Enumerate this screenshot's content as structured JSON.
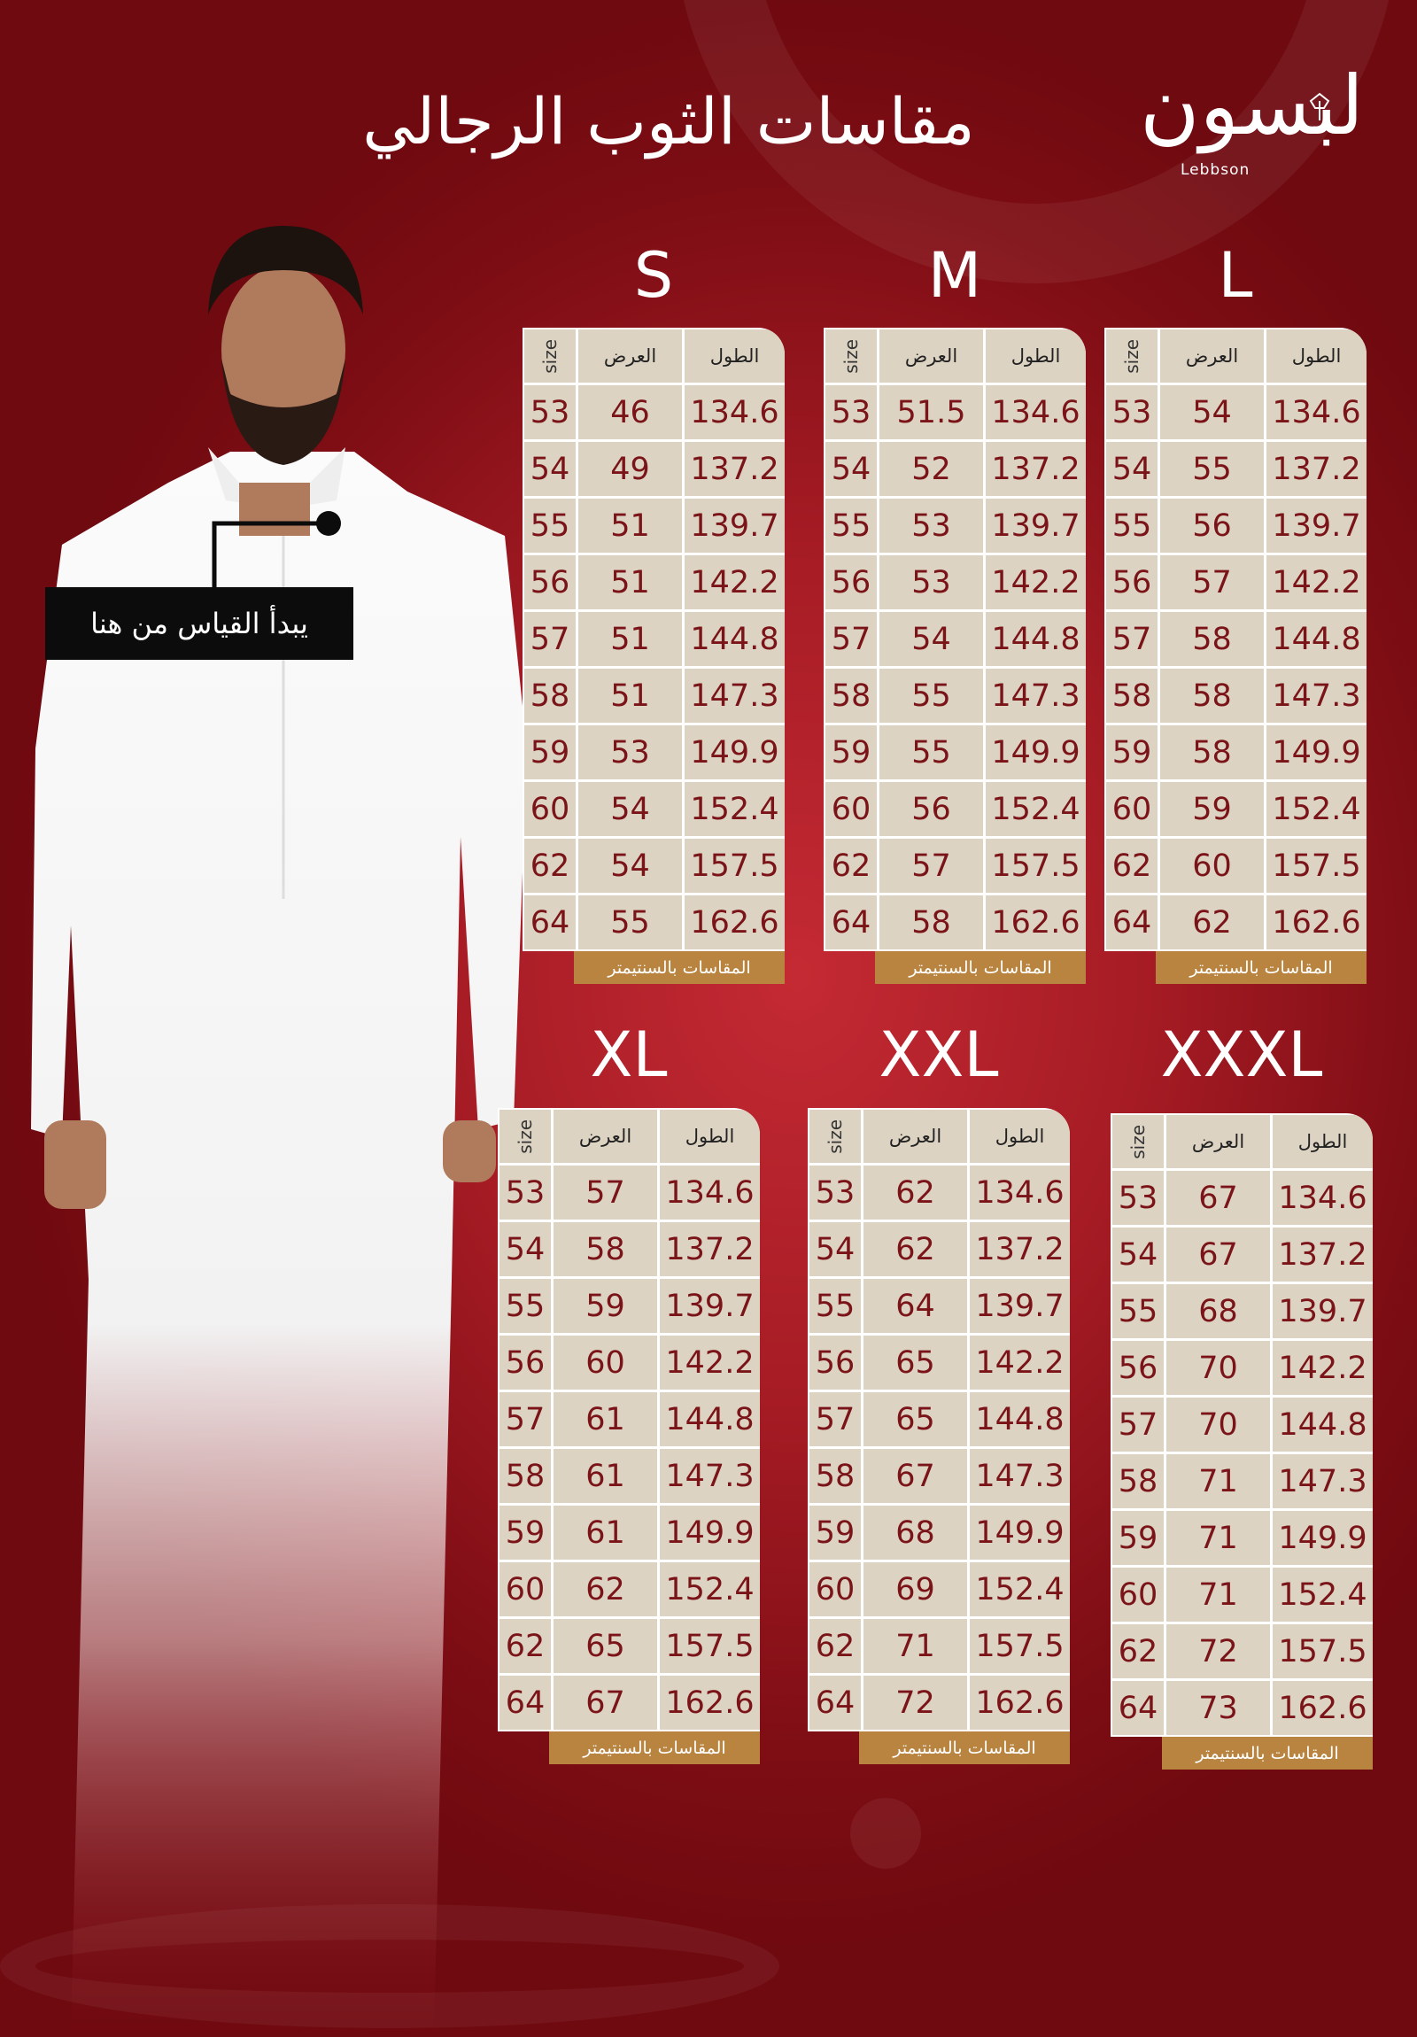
{
  "title": "مقاسات الثوب الرجالي",
  "brand": {
    "name_ar": "لبسون",
    "name_en": "Lebbson"
  },
  "callout": "يبدأ القياس من هنا",
  "colors": {
    "background": "#a51b24",
    "table_bg": "#ddd3c2",
    "text": "#7a1418",
    "footer": "#b8843f"
  },
  "headers": {
    "size": "size",
    "width": "العرض",
    "length": "الطول"
  },
  "footer": "المقاسات بالسنتيمتر",
  "tables": [
    {
      "label": "S",
      "rows": [
        [
          "53",
          "46",
          "134.6"
        ],
        [
          "54",
          "49",
          "137.2"
        ],
        [
          "55",
          "51",
          "139.7"
        ],
        [
          "56",
          "51",
          "142.2"
        ],
        [
          "57",
          "51",
          "144.8"
        ],
        [
          "58",
          "51",
          "147.3"
        ],
        [
          "59",
          "53",
          "149.9"
        ],
        [
          "60",
          "54",
          "152.4"
        ],
        [
          "62",
          "54",
          "157.5"
        ],
        [
          "64",
          "55",
          "162.6"
        ]
      ]
    },
    {
      "label": "M",
      "rows": [
        [
          "53",
          "51.5",
          "134.6"
        ],
        [
          "54",
          "52",
          "137.2"
        ],
        [
          "55",
          "53",
          "139.7"
        ],
        [
          "56",
          "53",
          "142.2"
        ],
        [
          "57",
          "54",
          "144.8"
        ],
        [
          "58",
          "55",
          "147.3"
        ],
        [
          "59",
          "55",
          "149.9"
        ],
        [
          "60",
          "56",
          "152.4"
        ],
        [
          "62",
          "57",
          "157.5"
        ],
        [
          "64",
          "58",
          "162.6"
        ]
      ]
    },
    {
      "label": "L",
      "rows": [
        [
          "53",
          "54",
          "134.6"
        ],
        [
          "54",
          "55",
          "137.2"
        ],
        [
          "55",
          "56",
          "139.7"
        ],
        [
          "56",
          "57",
          "142.2"
        ],
        [
          "57",
          "58",
          "144.8"
        ],
        [
          "58",
          "58",
          "147.3"
        ],
        [
          "59",
          "58",
          "149.9"
        ],
        [
          "60",
          "59",
          "152.4"
        ],
        [
          "62",
          "60",
          "157.5"
        ],
        [
          "64",
          "62",
          "162.6"
        ]
      ]
    },
    {
      "label": "XL",
      "rows": [
        [
          "53",
          "57",
          "134.6"
        ],
        [
          "54",
          "58",
          "137.2"
        ],
        [
          "55",
          "59",
          "139.7"
        ],
        [
          "56",
          "60",
          "142.2"
        ],
        [
          "57",
          "61",
          "144.8"
        ],
        [
          "58",
          "61",
          "147.3"
        ],
        [
          "59",
          "61",
          "149.9"
        ],
        [
          "60",
          "62",
          "152.4"
        ],
        [
          "62",
          "65",
          "157.5"
        ],
        [
          "64",
          "67",
          "162.6"
        ]
      ]
    },
    {
      "label": "XXL",
      "rows": [
        [
          "53",
          "62",
          "134.6"
        ],
        [
          "54",
          "62",
          "137.2"
        ],
        [
          "55",
          "64",
          "139.7"
        ],
        [
          "56",
          "65",
          "142.2"
        ],
        [
          "57",
          "65",
          "144.8"
        ],
        [
          "58",
          "67",
          "147.3"
        ],
        [
          "59",
          "68",
          "149.9"
        ],
        [
          "60",
          "69",
          "152.4"
        ],
        [
          "62",
          "71",
          "157.5"
        ],
        [
          "64",
          "72",
          "162.6"
        ]
      ]
    },
    {
      "label": "XXXL",
      "rows": [
        [
          "53",
          "67",
          "134.6"
        ],
        [
          "54",
          "67",
          "137.2"
        ],
        [
          "55",
          "68",
          "139.7"
        ],
        [
          "56",
          "70",
          "142.2"
        ],
        [
          "57",
          "70",
          "144.8"
        ],
        [
          "58",
          "71",
          "147.3"
        ],
        [
          "59",
          "71",
          "149.9"
        ],
        [
          "60",
          "71",
          "152.4"
        ],
        [
          "62",
          "72",
          "157.5"
        ],
        [
          "64",
          "73",
          "162.6"
        ]
      ]
    }
  ]
}
